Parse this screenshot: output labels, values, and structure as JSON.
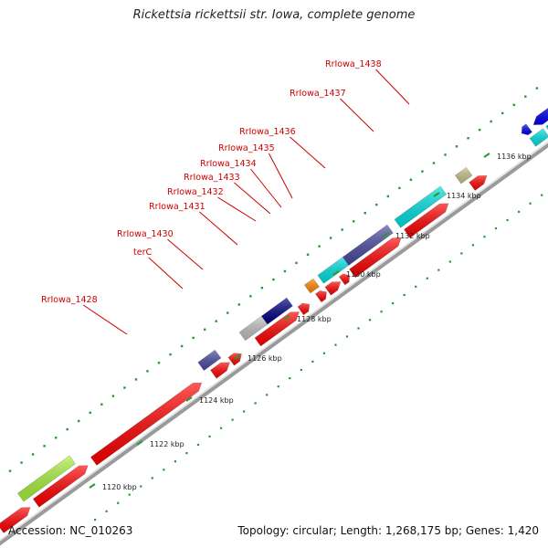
{
  "title": "Rickettsia rickettsii str. Iowa, complete genome",
  "footer": {
    "accession": "Accession: NC_010263",
    "summary": "Topology: circular; Length: 1,268,175 bp; Genes: 1,420"
  },
  "colors": {
    "forward_gene": "#ff0000",
    "backbone": "#888888",
    "label": "#cc0000",
    "tick": "#009900"
  },
  "ticks": [
    {
      "label": "1120 kbp"
    },
    {
      "label": "1122 kbp"
    },
    {
      "label": "1124 kbp"
    },
    {
      "label": "1126 kbp"
    },
    {
      "label": "1128 kbp"
    },
    {
      "label": "1130 kbp"
    },
    {
      "label": "1132 kbp"
    },
    {
      "label": "1134 kbp"
    },
    {
      "label": "1136 kbp"
    }
  ],
  "gene_labels": [
    {
      "name": "RrIowa_1428"
    },
    {
      "name": "terC"
    },
    {
      "name": "RrIowa_1430"
    },
    {
      "name": "RrIowa_1431"
    },
    {
      "name": "RrIowa_1432"
    },
    {
      "name": "RrIowa_1433"
    },
    {
      "name": "RrIowa_1434"
    },
    {
      "name": "RrIowa_1435"
    },
    {
      "name": "RrIowa_1436"
    },
    {
      "name": "RrIowa_1437"
    },
    {
      "name": "RrIowa_1438"
    }
  ]
}
